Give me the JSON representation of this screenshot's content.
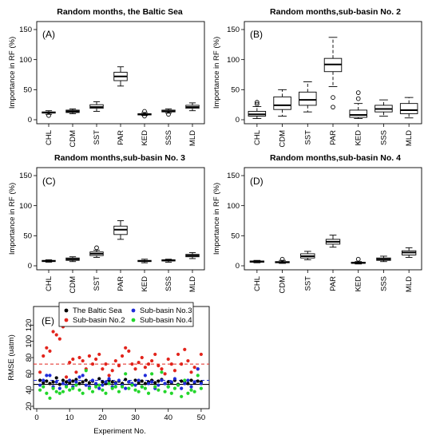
{
  "chart_data": [
    {
      "panel": "(A)",
      "type": "box",
      "title": "Random months, the Baltic Sea",
      "ylabel": "Importance in RF (%)",
      "ylim": [
        0,
        150
      ],
      "yticks": [
        0,
        50,
        100,
        150
      ],
      "categories": [
        "CHL",
        "CDM",
        "SST",
        "PAR",
        "KED",
        "SSS",
        "MLD"
      ],
      "boxes": [
        {
          "min": 9,
          "q1": 11,
          "median": 12,
          "q3": 13,
          "max": 15,
          "outliers": [
            7
          ]
        },
        {
          "min": 10,
          "q1": 12,
          "median": 14,
          "q3": 16,
          "max": 18,
          "outliers": []
        },
        {
          "min": 14,
          "q1": 19,
          "median": 21,
          "q3": 25,
          "max": 30,
          "outliers": []
        },
        {
          "min": 56,
          "q1": 65,
          "median": 72,
          "q3": 79,
          "max": 88,
          "outliers": []
        },
        {
          "min": 7,
          "q1": 8,
          "median": 9,
          "q3": 10,
          "max": 12,
          "outliers": [
            14,
            6
          ]
        },
        {
          "min": 11,
          "q1": 13,
          "median": 14,
          "q3": 16,
          "max": 18,
          "outliers": [
            9
          ]
        },
        {
          "min": 15,
          "q1": 19,
          "median": 21,
          "q3": 24,
          "max": 28,
          "outliers": []
        }
      ]
    },
    {
      "panel": "(B)",
      "type": "box",
      "title": "Random months,sub-basin No. 2",
      "ylabel": "Importance in RF (%)",
      "ylim": [
        0,
        150
      ],
      "yticks": [
        0,
        50,
        100,
        150
      ],
      "categories": [
        "CHL",
        "CDM",
        "SST",
        "PAR",
        "KED",
        "SSS",
        "MLD"
      ],
      "boxes": [
        {
          "min": 2,
          "q1": 6,
          "median": 9,
          "q3": 14,
          "max": 22,
          "outliers": [
            26,
            29
          ]
        },
        {
          "min": 6,
          "q1": 17,
          "median": 24,
          "q3": 38,
          "max": 50,
          "outliers": []
        },
        {
          "min": 13,
          "q1": 24,
          "median": 33,
          "q3": 46,
          "max": 63,
          "outliers": []
        },
        {
          "min": 55,
          "q1": 80,
          "median": 92,
          "q3": 102,
          "max": 137,
          "outliers": [
            37,
            21
          ]
        },
        {
          "min": 2,
          "q1": 4,
          "median": 8,
          "q3": 16,
          "max": 27,
          "outliers": [
            35,
            45
          ]
        },
        {
          "min": 6,
          "q1": 13,
          "median": 18,
          "q3": 24,
          "max": 33,
          "outliers": []
        },
        {
          "min": 3,
          "q1": 10,
          "median": 16,
          "q3": 27,
          "max": 37,
          "outliers": []
        }
      ]
    },
    {
      "panel": "(C)",
      "type": "box",
      "title": "Random months,sub-basin No. 3",
      "ylabel": "Importance in RF (%)",
      "ylim": [
        0,
        150
      ],
      "yticks": [
        0,
        50,
        100,
        150
      ],
      "categories": [
        "CHL",
        "CDM",
        "SST",
        "PAR",
        "KED",
        "SSS",
        "MLD"
      ],
      "boxes": [
        {
          "min": 6,
          "q1": 7,
          "median": 8,
          "q3": 9,
          "max": 10,
          "outliers": []
        },
        {
          "min": 7,
          "q1": 9,
          "median": 11,
          "q3": 13,
          "max": 15,
          "outliers": []
        },
        {
          "min": 14,
          "q1": 17,
          "median": 20,
          "q3": 23,
          "max": 26,
          "outliers": [
            30
          ]
        },
        {
          "min": 44,
          "q1": 52,
          "median": 60,
          "q3": 66,
          "max": 75,
          "outliers": []
        },
        {
          "min": 5,
          "q1": 7,
          "median": 8,
          "q3": 9,
          "max": 11,
          "outliers": []
        },
        {
          "min": 6,
          "q1": 8,
          "median": 9,
          "q3": 10,
          "max": 11,
          "outliers": []
        },
        {
          "min": 12,
          "q1": 15,
          "median": 17,
          "q3": 19,
          "max": 22,
          "outliers": []
        }
      ]
    },
    {
      "panel": "(D)",
      "type": "box",
      "title": "Random months,sub-basin No. 4",
      "ylabel": "Importance in RF (%)",
      "ylim": [
        0,
        150
      ],
      "yticks": [
        0,
        50,
        100,
        150
      ],
      "categories": [
        "CHL",
        "CDM",
        "SST",
        "PAR",
        "KED",
        "SSS",
        "MLD"
      ],
      "boxes": [
        {
          "min": 5,
          "q1": 6,
          "median": 7,
          "q3": 8,
          "max": 9,
          "outliers": []
        },
        {
          "min": 4,
          "q1": 5,
          "median": 6,
          "q3": 7,
          "max": 9,
          "outliers": [
            11
          ]
        },
        {
          "min": 10,
          "q1": 13,
          "median": 16,
          "q3": 20,
          "max": 24,
          "outliers": []
        },
        {
          "min": 31,
          "q1": 36,
          "median": 40,
          "q3": 44,
          "max": 51,
          "outliers": []
        },
        {
          "min": 3,
          "q1": 4,
          "median": 5,
          "q3": 6,
          "max": 7,
          "outliers": [
            11
          ]
        },
        {
          "min": 7,
          "q1": 9,
          "median": 11,
          "q3": 13,
          "max": 16,
          "outliers": []
        },
        {
          "min": 14,
          "q1": 18,
          "median": 22,
          "q3": 25,
          "max": 30,
          "outliers": []
        }
      ]
    },
    {
      "panel": "(E)",
      "type": "scatter",
      "title": "",
      "xlabel": "Experiment No.",
      "ylabel": "RMSE (uatm)",
      "xlim": [
        0,
        51
      ],
      "ylim": [
        20,
        140
      ],
      "xticks": [
        0,
        10,
        20,
        30,
        40,
        50
      ],
      "yticks": [
        20,
        40,
        60,
        80,
        100,
        120
      ],
      "reference_lines": [
        {
          "value": 72,
          "color": "#e2241c",
          "style": "dashed"
        },
        {
          "value": 52,
          "color": "#1f2bd9",
          "style": "dashed"
        },
        {
          "value": 47,
          "color": "#000000",
          "style": "solid"
        }
      ],
      "legend_position": "top",
      "series": [
        {
          "name": "The Baltic Sea",
          "color": "#000000",
          "x": [
            1,
            2,
            3,
            4,
            5,
            6,
            7,
            8,
            9,
            10,
            11,
            12,
            13,
            14,
            15,
            16,
            17,
            18,
            19,
            20,
            21,
            22,
            23,
            24,
            25,
            26,
            27,
            28,
            29,
            30,
            31,
            32,
            33,
            34,
            35,
            36,
            37,
            38,
            39,
            40,
            41,
            42,
            43,
            44,
            45,
            46,
            47,
            48,
            49,
            50
          ],
          "y": [
            52,
            49,
            51,
            48,
            50,
            55,
            47,
            52,
            50,
            49,
            51,
            53,
            48,
            50,
            52,
            49,
            51,
            47,
            54,
            50,
            48,
            52,
            50,
            49,
            51,
            48,
            53,
            50,
            47,
            52,
            49,
            51,
            48,
            50,
            52,
            49,
            51,
            53,
            48,
            50,
            49,
            52,
            47,
            51,
            50,
            48,
            52,
            49,
            51,
            50
          ]
        },
        {
          "name": "Sub-basin No.2",
          "color": "#e2241c",
          "x": [
            1,
            2,
            3,
            4,
            5,
            6,
            7,
            8,
            9,
            10,
            11,
            12,
            13,
            14,
            15,
            16,
            17,
            18,
            19,
            20,
            21,
            22,
            23,
            24,
            25,
            26,
            27,
            28,
            29,
            30,
            31,
            32,
            33,
            34,
            35,
            36,
            37,
            38,
            39,
            40,
            41,
            42,
            43,
            44,
            45,
            46,
            47,
            48,
            49,
            50
          ],
          "y": [
            62,
            82,
            92,
            88,
            112,
            108,
            103,
            118,
            56,
            74,
            78,
            62,
            80,
            76,
            66,
            82,
            72,
            78,
            84,
            66,
            72,
            58,
            64,
            76,
            70,
            82,
            92,
            88,
            72,
            66,
            74,
            80,
            68,
            72,
            76,
            84,
            70,
            66,
            60,
            78,
            72,
            64,
            84,
            72,
            90,
            76,
            62,
            68,
            66,
            84
          ]
        },
        {
          "name": "Sub-basin No.3",
          "color": "#1f2bd9",
          "x": [
            1,
            2,
            3,
            4,
            5,
            6,
            7,
            8,
            9,
            10,
            11,
            12,
            13,
            14,
            15,
            16,
            17,
            18,
            19,
            20,
            21,
            22,
            23,
            24,
            25,
            26,
            27,
            28,
            29,
            30,
            31,
            32,
            33,
            34,
            35,
            36,
            37,
            38,
            39,
            40,
            41,
            42,
            43,
            44,
            45,
            46,
            47,
            48,
            49,
            50
          ],
          "y": [
            46,
            52,
            58,
            58,
            44,
            50,
            42,
            48,
            46,
            52,
            44,
            50,
            56,
            58,
            46,
            44,
            52,
            48,
            42,
            46,
            50,
            54,
            44,
            48,
            52,
            46,
            42,
            50,
            48,
            46,
            52,
            44,
            58,
            48,
            50,
            42,
            46,
            52,
            48,
            44,
            50,
            54,
            46,
            42,
            48,
            52,
            44,
            50,
            66,
            48
          ]
        },
        {
          "name": "Sub-basin No.4",
          "color": "#22d62a",
          "x": [
            1,
            2,
            3,
            4,
            5,
            6,
            7,
            8,
            9,
            10,
            11,
            12,
            13,
            14,
            15,
            16,
            17,
            18,
            19,
            20,
            21,
            22,
            23,
            24,
            25,
            26,
            27,
            28,
            29,
            30,
            31,
            32,
            33,
            34,
            35,
            36,
            37,
            38,
            39,
            40,
            41,
            42,
            43,
            44,
            45,
            46,
            47,
            48,
            49,
            50
          ],
          "y": [
            40,
            44,
            36,
            30,
            42,
            38,
            36,
            38,
            44,
            40,
            42,
            46,
            40,
            36,
            64,
            42,
            38,
            44,
            46,
            40,
            36,
            48,
            42,
            44,
            38,
            44,
            60,
            42,
            46,
            40,
            38,
            44,
            42,
            36,
            60,
            44,
            40,
            62,
            38,
            44,
            36,
            42,
            46,
            32,
            52,
            36,
            40,
            38,
            58,
            42
          ]
        }
      ]
    }
  ]
}
